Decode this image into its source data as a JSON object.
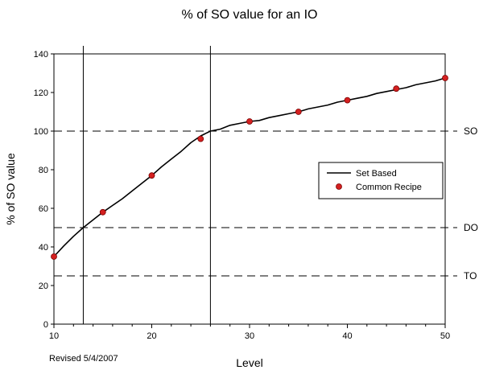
{
  "chart_data": {
    "type": "line",
    "title": "% of SO value for an IO",
    "xlabel": "Level",
    "ylabel": "% of SO value",
    "xlim": [
      10,
      50
    ],
    "ylim": [
      0,
      140
    ],
    "xticks": [
      10,
      20,
      30,
      40,
      50
    ],
    "yticks": [
      0,
      20,
      40,
      60,
      80,
      100,
      120,
      140
    ],
    "grid": false,
    "legend_placement": "right-middle",
    "series": [
      {
        "name": "Set Based",
        "style": "line",
        "color": "#000000",
        "x": [
          10,
          11,
          12,
          13,
          14,
          15,
          16,
          17,
          18,
          19,
          20,
          21,
          22,
          23,
          24,
          25,
          26,
          27,
          28,
          29,
          30,
          31,
          32,
          33,
          34,
          35,
          36,
          37,
          38,
          39,
          40,
          41,
          42,
          43,
          44,
          45,
          46,
          47,
          48,
          49,
          50
        ],
        "y": [
          35,
          40.5,
          45.5,
          50,
          54,
          58,
          61.5,
          65,
          69,
          73,
          77,
          81.5,
          85.5,
          89.5,
          94,
          97.5,
          100,
          101,
          103,
          104,
          105,
          105.5,
          107,
          108,
          109,
          110,
          111.5,
          112.5,
          113.5,
          115,
          116,
          117,
          118,
          119.5,
          120.5,
          121.5,
          122.5,
          124,
          125,
          126,
          127.5
        ]
      },
      {
        "name": "Common Recipe",
        "style": "marker",
        "color": "#d42020",
        "x": [
          10,
          15,
          20,
          25,
          30,
          35,
          40,
          45,
          50
        ],
        "y": [
          35,
          58,
          77,
          96,
          105,
          110,
          116,
          122,
          127.5
        ]
      }
    ],
    "reference_lines": [
      {
        "label": "SO",
        "y": 100
      },
      {
        "label": "DO",
        "y": 50
      },
      {
        "label": "TO",
        "y": 25
      }
    ],
    "vertical_lines": [
      13,
      26
    ],
    "annotation": "Revised 5/4/2007"
  }
}
